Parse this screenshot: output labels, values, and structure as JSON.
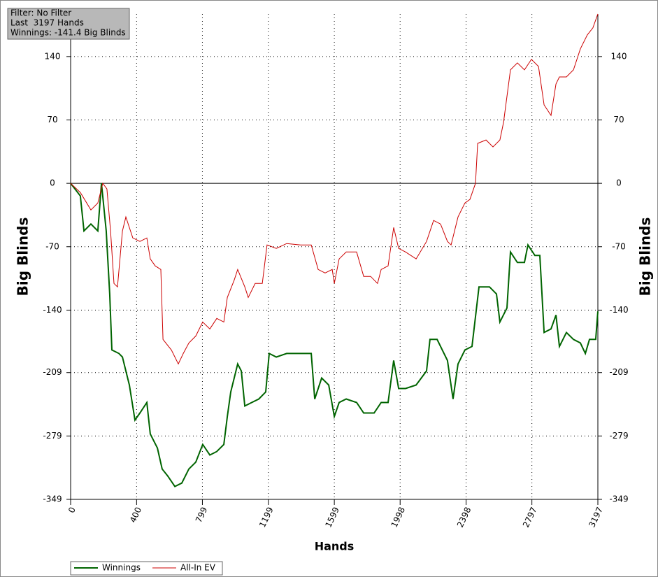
{
  "chart_data": {
    "type": "line",
    "annotations": [
      "Filter: No Filter",
      "Last  3197 Hands",
      "Winnings: -141.4 Big Blinds"
    ],
    "x_label": "Hands",
    "y_label": "Big Blinds",
    "xlim": [
      0,
      3197
    ],
    "xticks": [
      0,
      400,
      799,
      1199,
      1599,
      1998,
      2398,
      2797,
      3197
    ],
    "ylim": [
      -349,
      187
    ],
    "yticks": [
      -349,
      -279,
      -209,
      -140,
      -70,
      0,
      70,
      140
    ],
    "grid": true,
    "legend": "bottom-left",
    "series": [
      {
        "name": "Winnings",
        "color": "#006400",
        "x": [
          0,
          59,
          81,
          123,
          165,
          187,
          216,
          237,
          250,
          293,
          314,
          335,
          356,
          390,
          420,
          462,
          483,
          526,
          555,
          589,
          632,
          674,
          717,
          759,
          801,
          844,
          886,
          929,
          950,
          971,
          1013,
          1035,
          1056,
          1098,
          1141,
          1183,
          1204,
          1247,
          1310,
          1395,
          1459,
          1480,
          1522,
          1565,
          1599,
          1628,
          1671,
          1734,
          1777,
          1840,
          1883,
          1925,
          1959,
          1989,
          2031,
          2095,
          2158,
          2179,
          2222,
          2285,
          2319,
          2349,
          2391,
          2434,
          2476,
          2540,
          2582,
          2603,
          2646,
          2667,
          2709,
          2752,
          2773,
          2815,
          2845,
          2871,
          2913,
          2943,
          2964,
          3006,
          3049,
          3091,
          3121,
          3146,
          3184,
          3197
        ],
        "values": [
          0,
          -13.9,
          -52.6,
          -44.9,
          -52.6,
          0,
          -52.6,
          -122.2,
          -184.0,
          -187.9,
          -191.8,
          -207.2,
          -222.7,
          -261.4,
          -253.6,
          -242.0,
          -276.8,
          -292.3,
          -315.5,
          -323.2,
          -334.8,
          -331.0,
          -315.5,
          -307.8,
          -288.4,
          -300.0,
          -296.2,
          -288.4,
          -257.5,
          -230.4,
          -199.5,
          -207.2,
          -245.9,
          -242.0,
          -238.2,
          -230.4,
          -187.9,
          -191.8,
          -187.9,
          -187.9,
          -187.9,
          -238.2,
          -215.0,
          -222.7,
          -257.5,
          -242.0,
          -238.2,
          -242.0,
          -253.6,
          -253.6,
          -242.0,
          -242.0,
          -195.6,
          -226.6,
          -226.6,
          -222.7,
          -207.2,
          -172.4,
          -172.4,
          -195.6,
          -238.2,
          -199.5,
          -184.0,
          -180.2,
          -114.4,
          -114.4,
          -122.2,
          -153.1,
          -137.6,
          -75.8,
          -87.4,
          -87.4,
          -68.0,
          -79.6,
          -79.6,
          -164.7,
          -160.8,
          -145.4,
          -180.2,
          -164.7,
          -172.4,
          -176.3,
          -187.9,
          -172.4,
          -172.4,
          -141.4
        ]
      },
      {
        "name": "All-In EV",
        "color": "#cc0000",
        "x": [
          0,
          59,
          123,
          165,
          195,
          220,
          242,
          263,
          284,
          314,
          335,
          377,
          420,
          462,
          483,
          513,
          547,
          560,
          611,
          653,
          683,
          717,
          759,
          801,
          844,
          886,
          929,
          950,
          992,
          1013,
          1056,
          1077,
          1119,
          1162,
          1191,
          1247,
          1310,
          1395,
          1459,
          1501,
          1543,
          1586,
          1599,
          1628,
          1671,
          1734,
          1777,
          1819,
          1861,
          1883,
          1925,
          1959,
          1989,
          2031,
          2095,
          2158,
          2201,
          2243,
          2285,
          2307,
          2349,
          2391,
          2421,
          2455,
          2468,
          2519,
          2561,
          2603,
          2625,
          2667,
          2709,
          2752,
          2794,
          2837,
          2871,
          2913,
          2943,
          2964,
          3006,
          3049,
          3091,
          3133,
          3167,
          3197
        ],
        "values": [
          0,
          -10.1,
          -29.4,
          -21.7,
          0,
          -6.2,
          -52.6,
          -110.6,
          -114.4,
          -52.6,
          -37.1,
          -60.3,
          -64.2,
          -60.3,
          -83.5,
          -91.2,
          -95.1,
          -172.4,
          -184.0,
          -199.5,
          -187.9,
          -176.3,
          -168.6,
          -153.1,
          -160.8,
          -149.2,
          -153.1,
          -126.0,
          -106.7,
          -95.1,
          -114.4,
          -126.0,
          -110.6,
          -110.6,
          -68.0,
          -71.9,
          -66.5,
          -68.0,
          -68.0,
          -95.1,
          -99.0,
          -95.1,
          -110.6,
          -83.5,
          -75.8,
          -75.8,
          -102.8,
          -102.8,
          -110.6,
          -95.1,
          -91.2,
          -48.7,
          -71.9,
          -75.8,
          -83.5,
          -64.2,
          -41.0,
          -44.9,
          -64.2,
          -68.0,
          -37.1,
          -21.7,
          -17.8,
          0,
          44.1,
          47.9,
          40.2,
          47.9,
          67.3,
          125.3,
          133.0,
          125.3,
          136.9,
          129.1,
          86.6,
          75.0,
          109.8,
          117.5,
          117.5,
          125.3,
          148.5,
          163.9,
          171.7,
          187.1
        ]
      }
    ]
  }
}
